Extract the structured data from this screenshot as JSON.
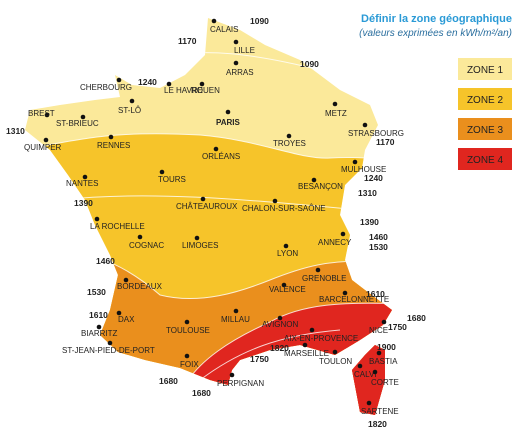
{
  "header": {
    "title": "Définir la zone géographique",
    "subtitle": "(valeurs exprimées en kWh/m²/an)"
  },
  "legend": [
    "ZONE 1",
    "ZONE 2",
    "ZONE 3",
    "ZONE 4"
  ],
  "cities": [
    "CALAIS",
    "LILLE",
    "ARRAS",
    "CHERBOURG",
    "LE HAVRE",
    "ROUEN",
    "ST-LÔ",
    "PARIS",
    "METZ",
    "BREST",
    "ST-BRIEUC",
    "QUIMPER",
    "RENNES",
    "TROYES",
    "STRASBOURG",
    "ORLÉANS",
    "MULHOUSE",
    "NANTES",
    "TOURS",
    "BESANÇON",
    "CHÂTEAUROUX",
    "CHALON-SUR-SAÔNE",
    "LA ROCHELLE",
    "COGNAC",
    "LIMOGES",
    "ANNECY",
    "LYON",
    "GRENOBLE",
    "BORDEAUX",
    "VALENCE",
    "BARCELONNETTE",
    "DAX",
    "TOULOUSE",
    "MILLAU",
    "AVIGNON",
    "BIARRITZ",
    "AIX-EN-PROVENCE",
    "NICE",
    "ST-JEAN-PIED-DE-PORT",
    "MARSEILLE",
    "TOULON",
    "BASTIA",
    "FOIX",
    "CALVI",
    "CORTE",
    "PERPIGNAN",
    "SARTENE"
  ],
  "isolines": [
    "1090",
    "1170",
    "1090",
    "1240",
    "1310",
    "1170",
    "1240",
    "1390",
    "1310",
    "1390",
    "1460",
    "1530",
    "1460",
    "1530",
    "1610",
    "1610",
    "1680",
    "1750",
    "1820",
    "1750",
    "1900",
    "1680",
    "1680",
    "1820"
  ]
}
